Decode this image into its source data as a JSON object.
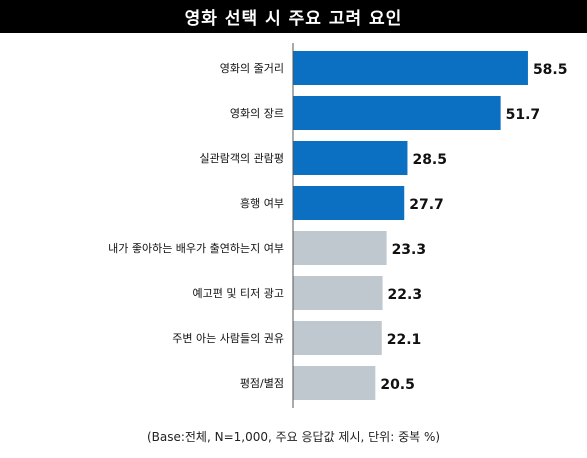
{
  "title": "영화 선택 시 주요 고려 요인",
  "footnote": "(Base:전체, N=1,000, 주요 응답값 제시, 단위: 중복 %)",
  "colors": {
    "highlight": "#0b6fc2",
    "muted": "#bfc7cf",
    "title_bg": "#000000"
  },
  "chart_data": {
    "type": "bar",
    "orientation": "horizontal",
    "categories": [
      "영화의 줄거리",
      "영화의 장르",
      "실관람객의 관람평",
      "흥행 여부",
      "내가 좋아하는 배우가 출연하는지 여부",
      "예고편 및 티저 광고",
      "주변 아는 사람들의 권유",
      "평점/별점"
    ],
    "values": [
      58.5,
      51.7,
      28.5,
      27.7,
      23.3,
      22.3,
      22.1,
      20.5
    ],
    "highlighted_count": 4,
    "xlim": [
      0,
      62
    ],
    "grid": false
  }
}
